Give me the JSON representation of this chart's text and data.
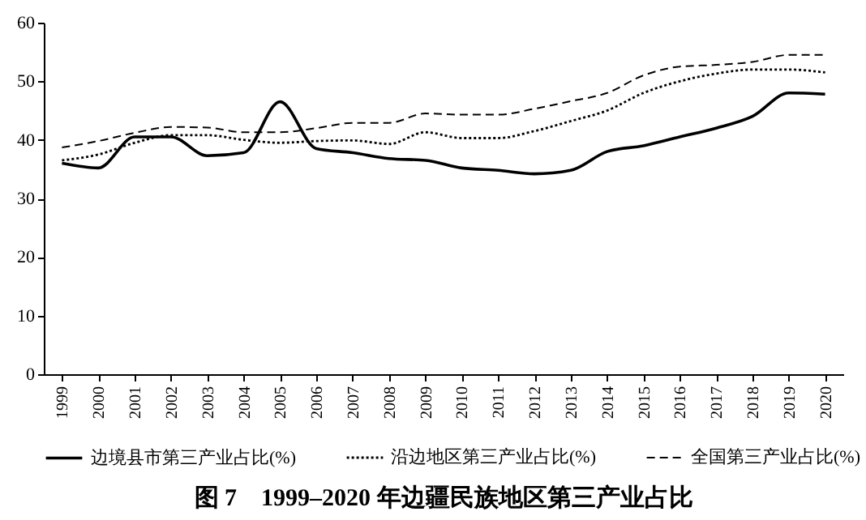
{
  "chart_data": {
    "type": "line",
    "title": "图 7　1999–2020 年边疆民族地区第三产业占比",
    "categories": [
      "1999",
      "2000",
      "2001",
      "2002",
      "2003",
      "2004",
      "2005",
      "2006",
      "2007",
      "2008",
      "2009",
      "2010",
      "2011",
      "2012",
      "2013",
      "2014",
      "2015",
      "2016",
      "2017",
      "2018",
      "2019",
      "2020"
    ],
    "series": [
      {
        "name": "边境县市第三产业占比(%)",
        "color": "#000000",
        "line_style": "solid",
        "values": [
          36,
          35.2,
          40.5,
          40.5,
          37.3,
          37.8,
          46.5,
          38.5,
          37.8,
          36.8,
          36.5,
          35.2,
          34.8,
          34.2,
          34.8,
          38,
          39,
          40.5,
          42,
          44,
          48,
          47.8
        ]
      },
      {
        "name": "沿边地区第三产业占比(%)",
        "color": "#000000",
        "line_style": "dotted",
        "values": [
          36.5,
          37.5,
          39.5,
          40.8,
          40.8,
          40,
          39.5,
          39.8,
          39.9,
          39.3,
          41.3,
          40.3,
          40.3,
          41.5,
          43.2,
          45,
          48,
          50,
          51.3,
          52,
          52,
          51.5
        ]
      },
      {
        "name": "全国第三产业占比(%)",
        "color": "#000000",
        "line_style": "dashed",
        "values": [
          38.7,
          39.8,
          41.2,
          42.2,
          42.1,
          41.3,
          41.3,
          42,
          42.9,
          42.9,
          44.5,
          44.3,
          44.3,
          45.3,
          46.6,
          48,
          51,
          52.5,
          52.8,
          53.3,
          54.5,
          54.5
        ]
      }
    ],
    "ylim": [
      0,
      60
    ],
    "yticks": [
      0,
      10,
      20,
      30,
      40,
      50,
      60
    ],
    "grid": false,
    "legend": "bottom",
    "marker": "none"
  }
}
